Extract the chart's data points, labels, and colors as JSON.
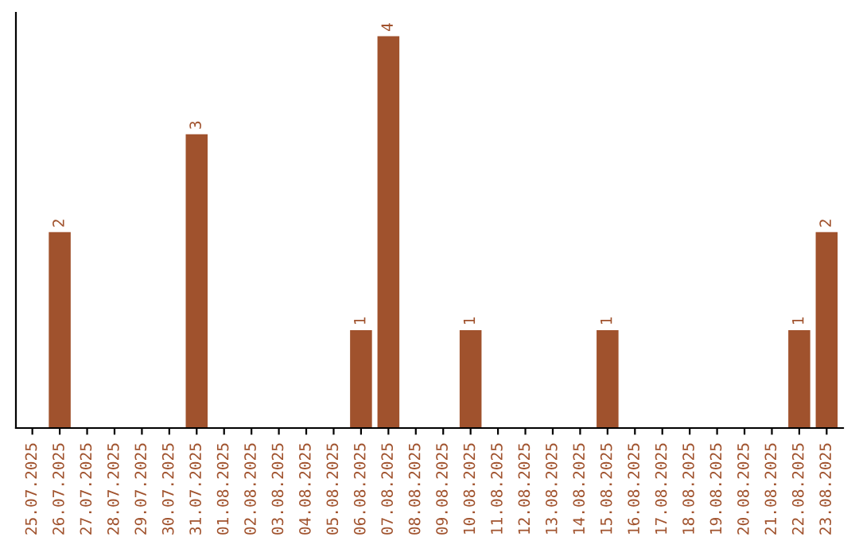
{
  "chart_data": {
    "type": "bar",
    "categories": [
      "25.07.2025",
      "26.07.2025",
      "27.07.2025",
      "28.07.2025",
      "29.07.2025",
      "30.07.2025",
      "31.07.2025",
      "01.08.2025",
      "02.08.2025",
      "03.08.2025",
      "04.08.2025",
      "05.08.2025",
      "06.08.2025",
      "07.08.2025",
      "08.08.2025",
      "09.08.2025",
      "10.08.2025",
      "11.08.2025",
      "12.08.2025",
      "13.08.2025",
      "14.08.2025",
      "15.08.2025",
      "16.08.2025",
      "17.08.2025",
      "18.08.2025",
      "19.08.2025",
      "20.08.2025",
      "21.08.2025",
      "22.08.2025",
      "23.08.2025"
    ],
    "values": [
      0,
      2,
      0,
      0,
      0,
      0,
      3,
      0,
      0,
      0,
      0,
      0,
      1,
      4,
      0,
      0,
      1,
      0,
      0,
      0,
      0,
      1,
      0,
      0,
      0,
      0,
      0,
      0,
      1,
      2
    ],
    "value_labels": [
      null,
      "2",
      null,
      null,
      null,
      null,
      "3",
      null,
      null,
      null,
      null,
      null,
      "1",
      "4",
      null,
      null,
      "1",
      null,
      null,
      null,
      null,
      "1",
      null,
      null,
      null,
      null,
      null,
      null,
      "1",
      "2"
    ],
    "color": "#a0522d",
    "grid": false,
    "legend": false,
    "tick_labels": "x"
  }
}
